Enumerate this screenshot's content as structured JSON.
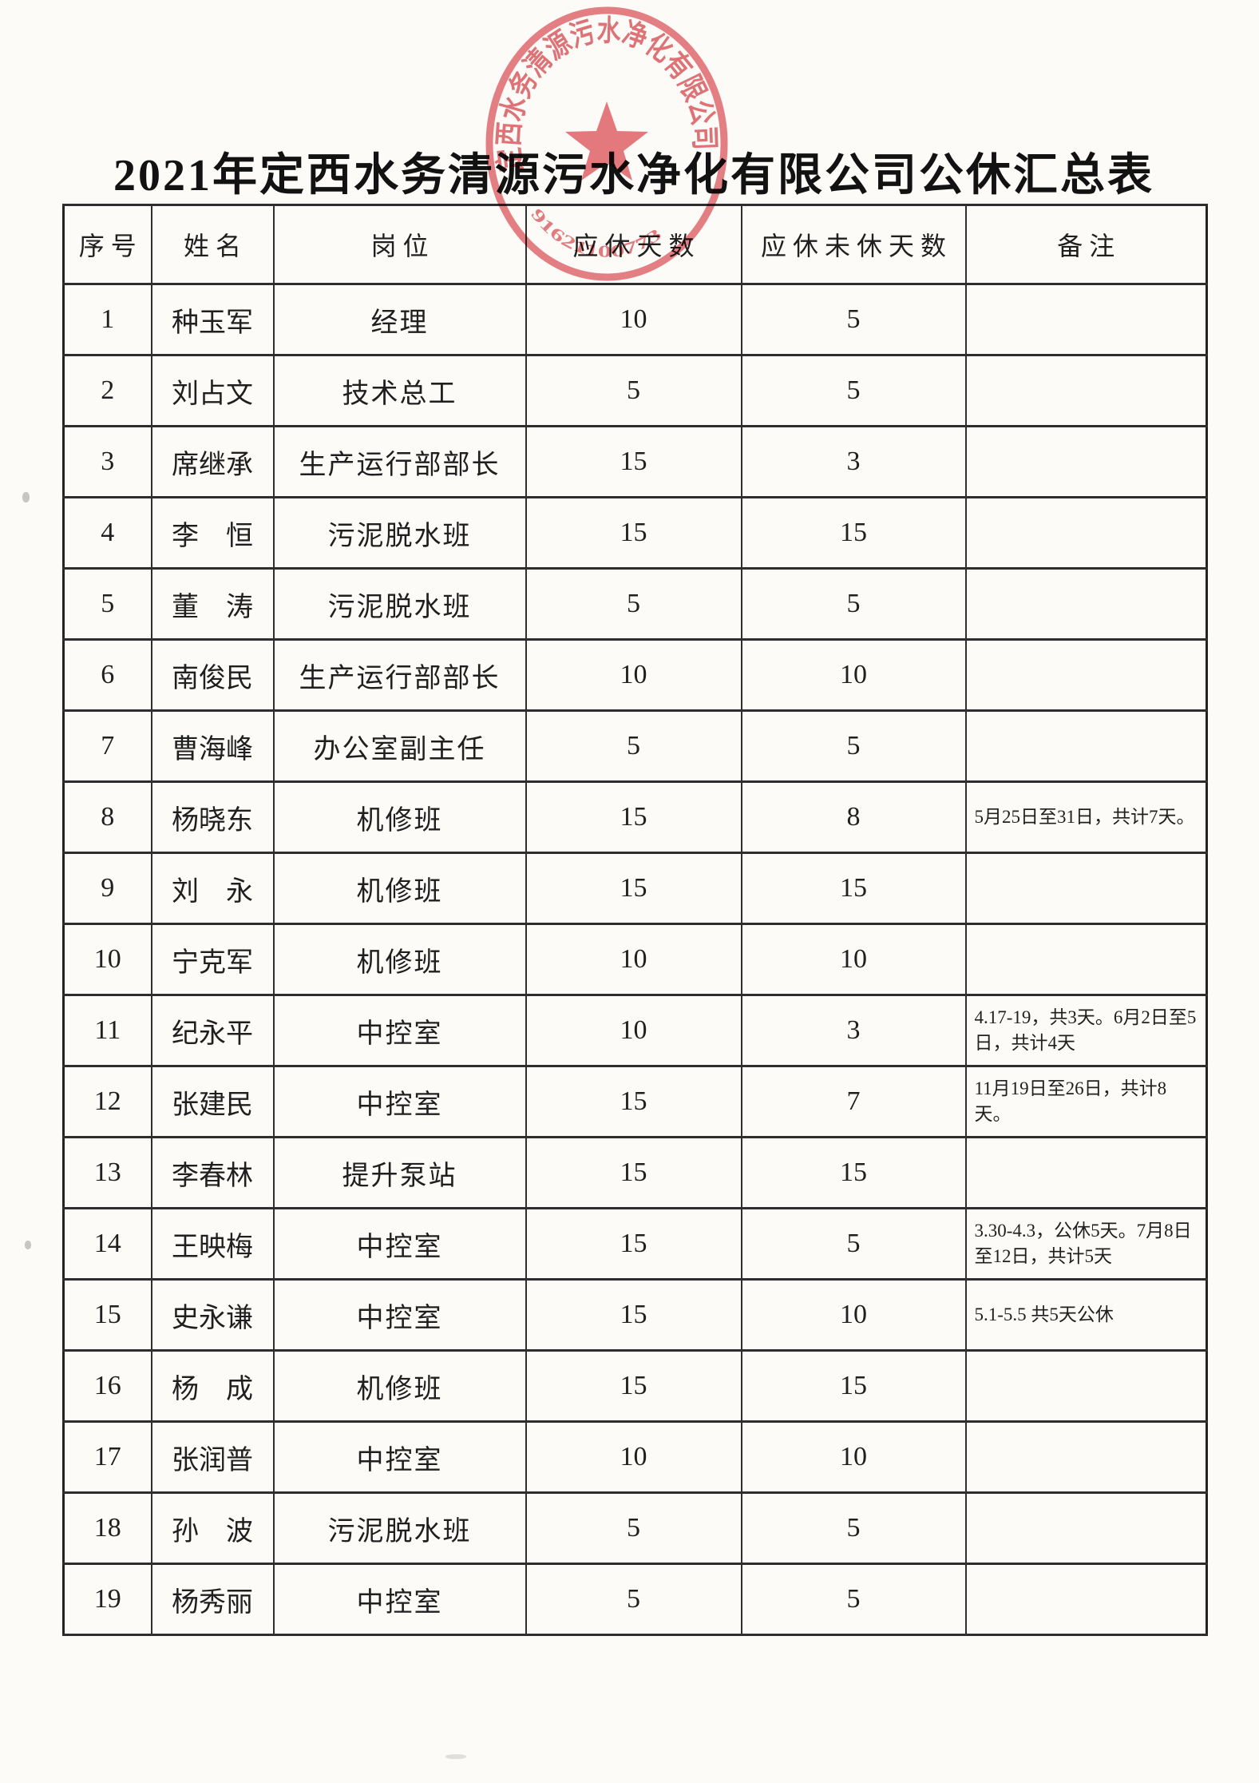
{
  "page": {
    "title": "2021年定西水务清源污水净化有限公司公休汇总表"
  },
  "stamp": {
    "company": "定西水务清源污水净化有限公司",
    "code": "91621100773",
    "color": "#d94f55"
  },
  "table": {
    "columns": [
      "序号",
      "姓名",
      "岗位",
      "应休天数",
      "应休未休天数",
      "备注"
    ],
    "rows": [
      {
        "no": "1",
        "name": "种玉军",
        "position": "经理",
        "days_due": "10",
        "days_unused": "5",
        "remark": ""
      },
      {
        "no": "2",
        "name": "刘占文",
        "position": "技术总工",
        "days_due": "5",
        "days_unused": "5",
        "remark": ""
      },
      {
        "no": "3",
        "name": "席继承",
        "position": "生产运行部部长",
        "days_due": "15",
        "days_unused": "3",
        "remark": ""
      },
      {
        "no": "4",
        "name": "李　恒",
        "position": "污泥脱水班",
        "days_due": "15",
        "days_unused": "15",
        "remark": ""
      },
      {
        "no": "5",
        "name": "董　涛",
        "position": "污泥脱水班",
        "days_due": "5",
        "days_unused": "5",
        "remark": ""
      },
      {
        "no": "6",
        "name": "南俊民",
        "position": "生产运行部部长",
        "days_due": "10",
        "days_unused": "10",
        "remark": ""
      },
      {
        "no": "7",
        "name": "曹海峰",
        "position": "办公室副主任",
        "days_due": "5",
        "days_unused": "5",
        "remark": ""
      },
      {
        "no": "8",
        "name": "杨晓东",
        "position": "机修班",
        "days_due": "15",
        "days_unused": "8",
        "remark": "5月25日至31日，共计7天。"
      },
      {
        "no": "9",
        "name": "刘　永",
        "position": "机修班",
        "days_due": "15",
        "days_unused": "15",
        "remark": ""
      },
      {
        "no": "10",
        "name": "宁克军",
        "position": "机修班",
        "days_due": "10",
        "days_unused": "10",
        "remark": ""
      },
      {
        "no": "11",
        "name": "纪永平",
        "position": "中控室",
        "days_due": "10",
        "days_unused": "3",
        "remark": "4.17-19，共3天。6月2日至5日，共计4天"
      },
      {
        "no": "12",
        "name": "张建民",
        "position": "中控室",
        "days_due": "15",
        "days_unused": "7",
        "remark": "11月19日至26日，共计8天。"
      },
      {
        "no": "13",
        "name": "李春林",
        "position": "提升泵站",
        "days_due": "15",
        "days_unused": "15",
        "remark": ""
      },
      {
        "no": "14",
        "name": "王映梅",
        "position": "中控室",
        "days_due": "15",
        "days_unused": "5",
        "remark": "3.30-4.3，公休5天。7月8日至12日，共计5天"
      },
      {
        "no": "15",
        "name": "史永谦",
        "position": "中控室",
        "days_due": "15",
        "days_unused": "10",
        "remark": "5.1-5.5 共5天公休"
      },
      {
        "no": "16",
        "name": "杨　成",
        "position": "机修班",
        "days_due": "15",
        "days_unused": "15",
        "remark": ""
      },
      {
        "no": "17",
        "name": "张润普",
        "position": "中控室",
        "days_due": "10",
        "days_unused": "10",
        "remark": ""
      },
      {
        "no": "18",
        "name": "孙　波",
        "position": "污泥脱水班",
        "days_due": "5",
        "days_unused": "5",
        "remark": ""
      },
      {
        "no": "19",
        "name": "杨秀丽",
        "position": "中控室",
        "days_due": "5",
        "days_unused": "5",
        "remark": ""
      }
    ]
  }
}
